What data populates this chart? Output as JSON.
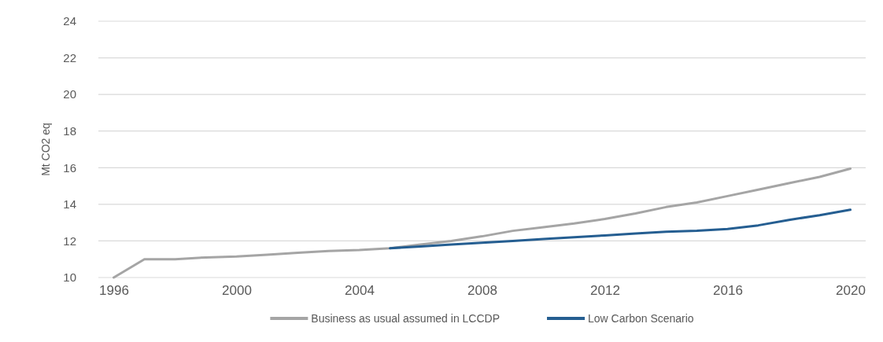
{
  "chart_data": {
    "type": "line",
    "ylabel": "Mt CO2 eq",
    "categories": [
      "1996",
      null,
      null,
      null,
      "2000",
      null,
      null,
      null,
      "2004",
      null,
      null,
      null,
      "2008",
      null,
      null,
      null,
      "2012",
      null,
      null,
      null,
      "2016",
      null,
      null,
      null,
      "2020"
    ],
    "series": [
      {
        "name": "Business as usual assumed in LCCDP",
        "color": "#a5a5a5",
        "values": [
          10,
          11,
          11,
          11.1,
          11.15,
          11.25,
          11.35,
          11.45,
          11.5,
          11.6,
          11.8,
          12.0,
          12.25,
          12.55,
          12.75,
          12.95,
          13.2,
          13.5,
          13.85,
          14.1,
          14.45,
          14.8,
          15.15,
          15.5,
          15.95
        ]
      },
      {
        "name": "Low Carbon Scenario",
        "color": "#255e91",
        "values": [
          null,
          null,
          null,
          null,
          null,
          null,
          null,
          null,
          null,
          11.6,
          11.7,
          11.8,
          11.9,
          12.0,
          12.1,
          12.2,
          12.3,
          12.4,
          12.5,
          12.55,
          12.65,
          12.85,
          13.15,
          13.4,
          13.7
        ]
      }
    ],
    "ylim": [
      10,
      24
    ],
    "yticks": [
      10,
      12,
      14,
      16,
      18,
      20,
      22,
      24
    ],
    "grid": "y",
    "legend": "bottom",
    "marker": "none",
    "line_style": "solid"
  }
}
